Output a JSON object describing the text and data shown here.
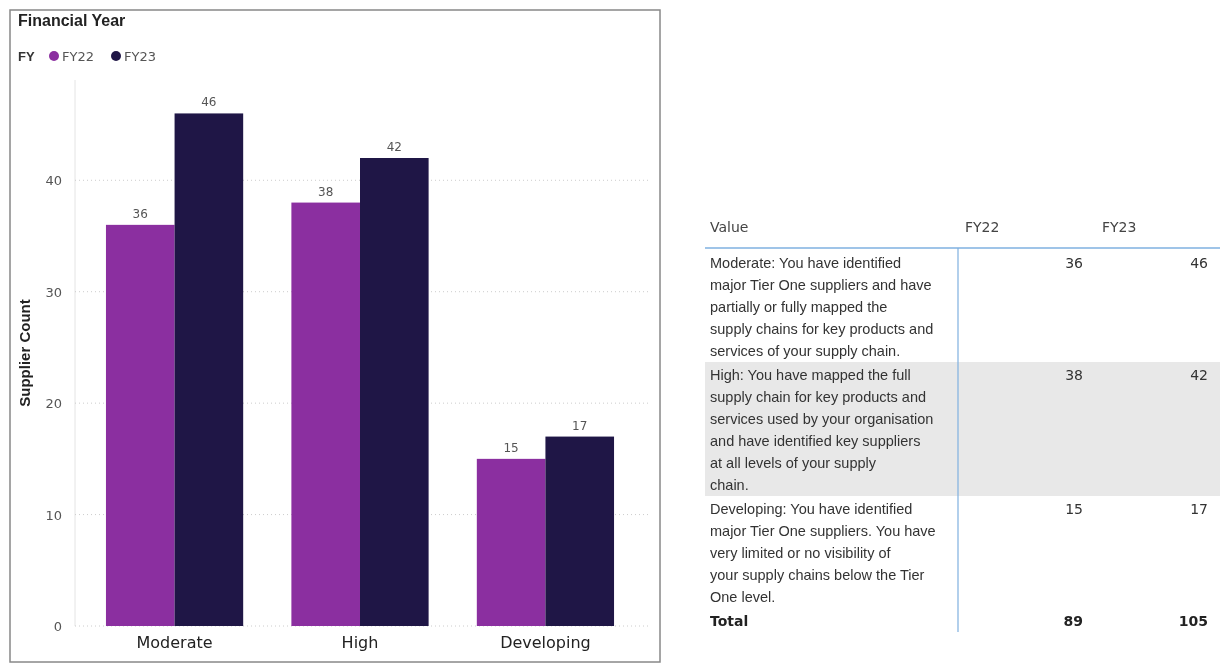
{
  "chart_data": [
    {
      "type": "bar",
      "title": "Financial Year",
      "legend_title": "FY",
      "ylabel": "Supplier Count",
      "categories": [
        "Moderate",
        "High",
        "Developing"
      ],
      "series": [
        {
          "name": "FY22",
          "color": "#8b2fa0",
          "values": [
            36,
            38,
            15
          ]
        },
        {
          "name": "FY23",
          "color": "#1f1646",
          "values": [
            46,
            42,
            17
          ]
        }
      ],
      "ylim": [
        0,
        49
      ],
      "yticks": [
        0,
        10,
        20,
        30,
        40
      ],
      "grid": "y",
      "legend": "top left",
      "data_labels": true
    },
    {
      "type": "other",
      "xlabel": "Value",
      "categories": [
        "Moderate: You have identified major Tier One suppliers and have partially or fully mapped the supply chains for key products and services of your supply chain.",
        "High: You have mapped the full supply chain for key products and services used by your organisation and have identified key suppliers at all levels of your supply chain.",
        "Developing: You have identified major Tier One suppliers. You have very limited or no visibility of your supply chains below the Tier One level."
      ],
      "series": [
        {
          "name": "FY22",
          "values": [
            36,
            38,
            15
          ]
        },
        {
          "name": "FY23",
          "values": [
            46,
            42,
            17
          ]
        }
      ],
      "annotations": [
        "Total"
      ],
      "totals": [
        "89",
        "105"
      ],
      "data_labels": true
    }
  ]
}
